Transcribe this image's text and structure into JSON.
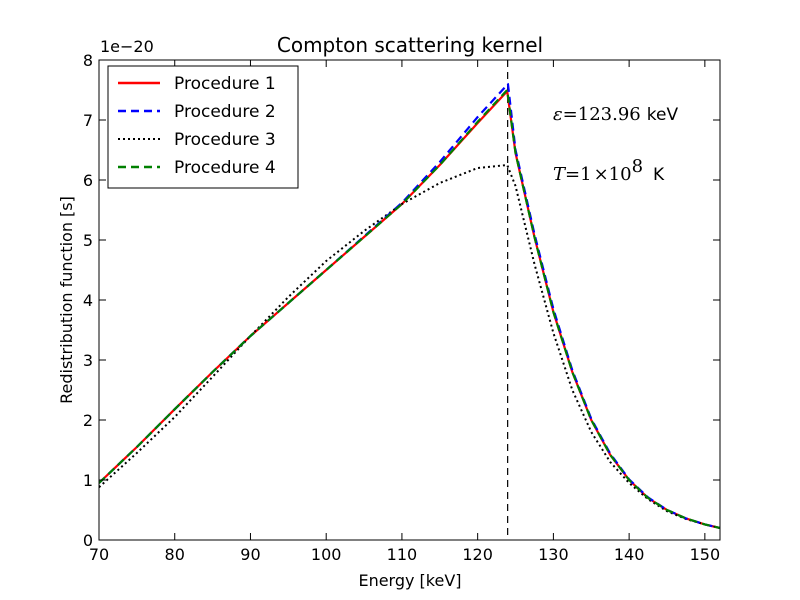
{
  "chart_data": {
    "type": "line",
    "title": "Compton scattering kernel",
    "xlabel": "Energy [keV]",
    "ylabel": "Redistribution function [s]",
    "y_offset_text": "1e−20",
    "xlim": [
      70,
      152
    ],
    "ylim": [
      0,
      8
    ],
    "xticks": [
      70,
      80,
      90,
      100,
      110,
      120,
      130,
      140,
      150
    ],
    "yticks": [
      0,
      1,
      2,
      3,
      4,
      5,
      6,
      7,
      8
    ],
    "grid": false,
    "legend_position": "top-left",
    "vline": {
      "x": 123.96,
      "style": "dashed",
      "color": "#000000"
    },
    "annotations": {
      "epsilon": {
        "symbol": "ε",
        "eq": "=",
        "value": "123.96",
        "unit": "keV"
      },
      "temperature": {
        "symbol": "T",
        "eq": "=",
        "mantissa": "1",
        "times": "×",
        "base": "10",
        "exponent": "8",
        "unit": "K"
      }
    },
    "series": [
      {
        "name": "Procedure 1",
        "color": "#ff0000",
        "style": "solid",
        "x": [
          70,
          75,
          80,
          85,
          90,
          95,
          100,
          105,
          110,
          115,
          120,
          123.9,
          125,
          127.5,
          130,
          132.5,
          135,
          137.5,
          140,
          142.5,
          145,
          147.5,
          150,
          152
        ],
        "y": [
          0.95,
          1.55,
          2.18,
          2.8,
          3.4,
          3.95,
          4.5,
          5.05,
          5.6,
          6.25,
          6.95,
          7.48,
          6.45,
          5.05,
          3.8,
          2.8,
          2.0,
          1.42,
          1.0,
          0.7,
          0.5,
          0.36,
          0.26,
          0.2
        ]
      },
      {
        "name": "Procedure 2",
        "color": "#0000ff",
        "style": "dashed",
        "x": [
          70,
          75,
          80,
          85,
          90,
          95,
          100,
          105,
          110,
          115,
          120,
          124.0,
          125,
          127.5,
          130,
          132.5,
          135,
          137.5,
          140,
          142.5,
          145,
          147.5,
          150,
          152
        ],
        "y": [
          0.95,
          1.55,
          2.18,
          2.8,
          3.4,
          3.95,
          4.5,
          5.06,
          5.62,
          6.3,
          7.05,
          7.6,
          6.5,
          5.1,
          3.85,
          2.83,
          2.02,
          1.44,
          1.01,
          0.71,
          0.5,
          0.36,
          0.26,
          0.2
        ]
      },
      {
        "name": "Procedure 3",
        "color": "#000000",
        "style": "dotted",
        "x": [
          70,
          75,
          80,
          85,
          90,
          95,
          100,
          105,
          110,
          115,
          120,
          123.9,
          125,
          127.5,
          130,
          132.5,
          135,
          137.5,
          140,
          142.5,
          145,
          147.5,
          150,
          152
        ],
        "y": [
          0.88,
          1.45,
          2.05,
          2.72,
          3.4,
          4.05,
          4.65,
          5.15,
          5.6,
          5.95,
          6.2,
          6.25,
          5.9,
          4.6,
          3.45,
          2.5,
          1.8,
          1.3,
          0.95,
          0.68,
          0.48,
          0.35,
          0.26,
          0.2
        ]
      },
      {
        "name": "Procedure 4",
        "color": "#008000",
        "style": "dashed",
        "x": [
          70,
          75,
          80,
          85,
          90,
          95,
          100,
          105,
          110,
          115,
          120,
          123.9,
          125,
          127.5,
          130,
          132.5,
          135,
          137.5,
          140,
          142.5,
          145,
          147.5,
          150,
          152
        ],
        "y": [
          0.95,
          1.55,
          2.18,
          2.8,
          3.4,
          3.95,
          4.5,
          5.05,
          5.6,
          6.25,
          6.97,
          7.5,
          6.45,
          5.05,
          3.8,
          2.8,
          2.0,
          1.42,
          1.0,
          0.7,
          0.5,
          0.36,
          0.26,
          0.2
        ]
      }
    ]
  }
}
